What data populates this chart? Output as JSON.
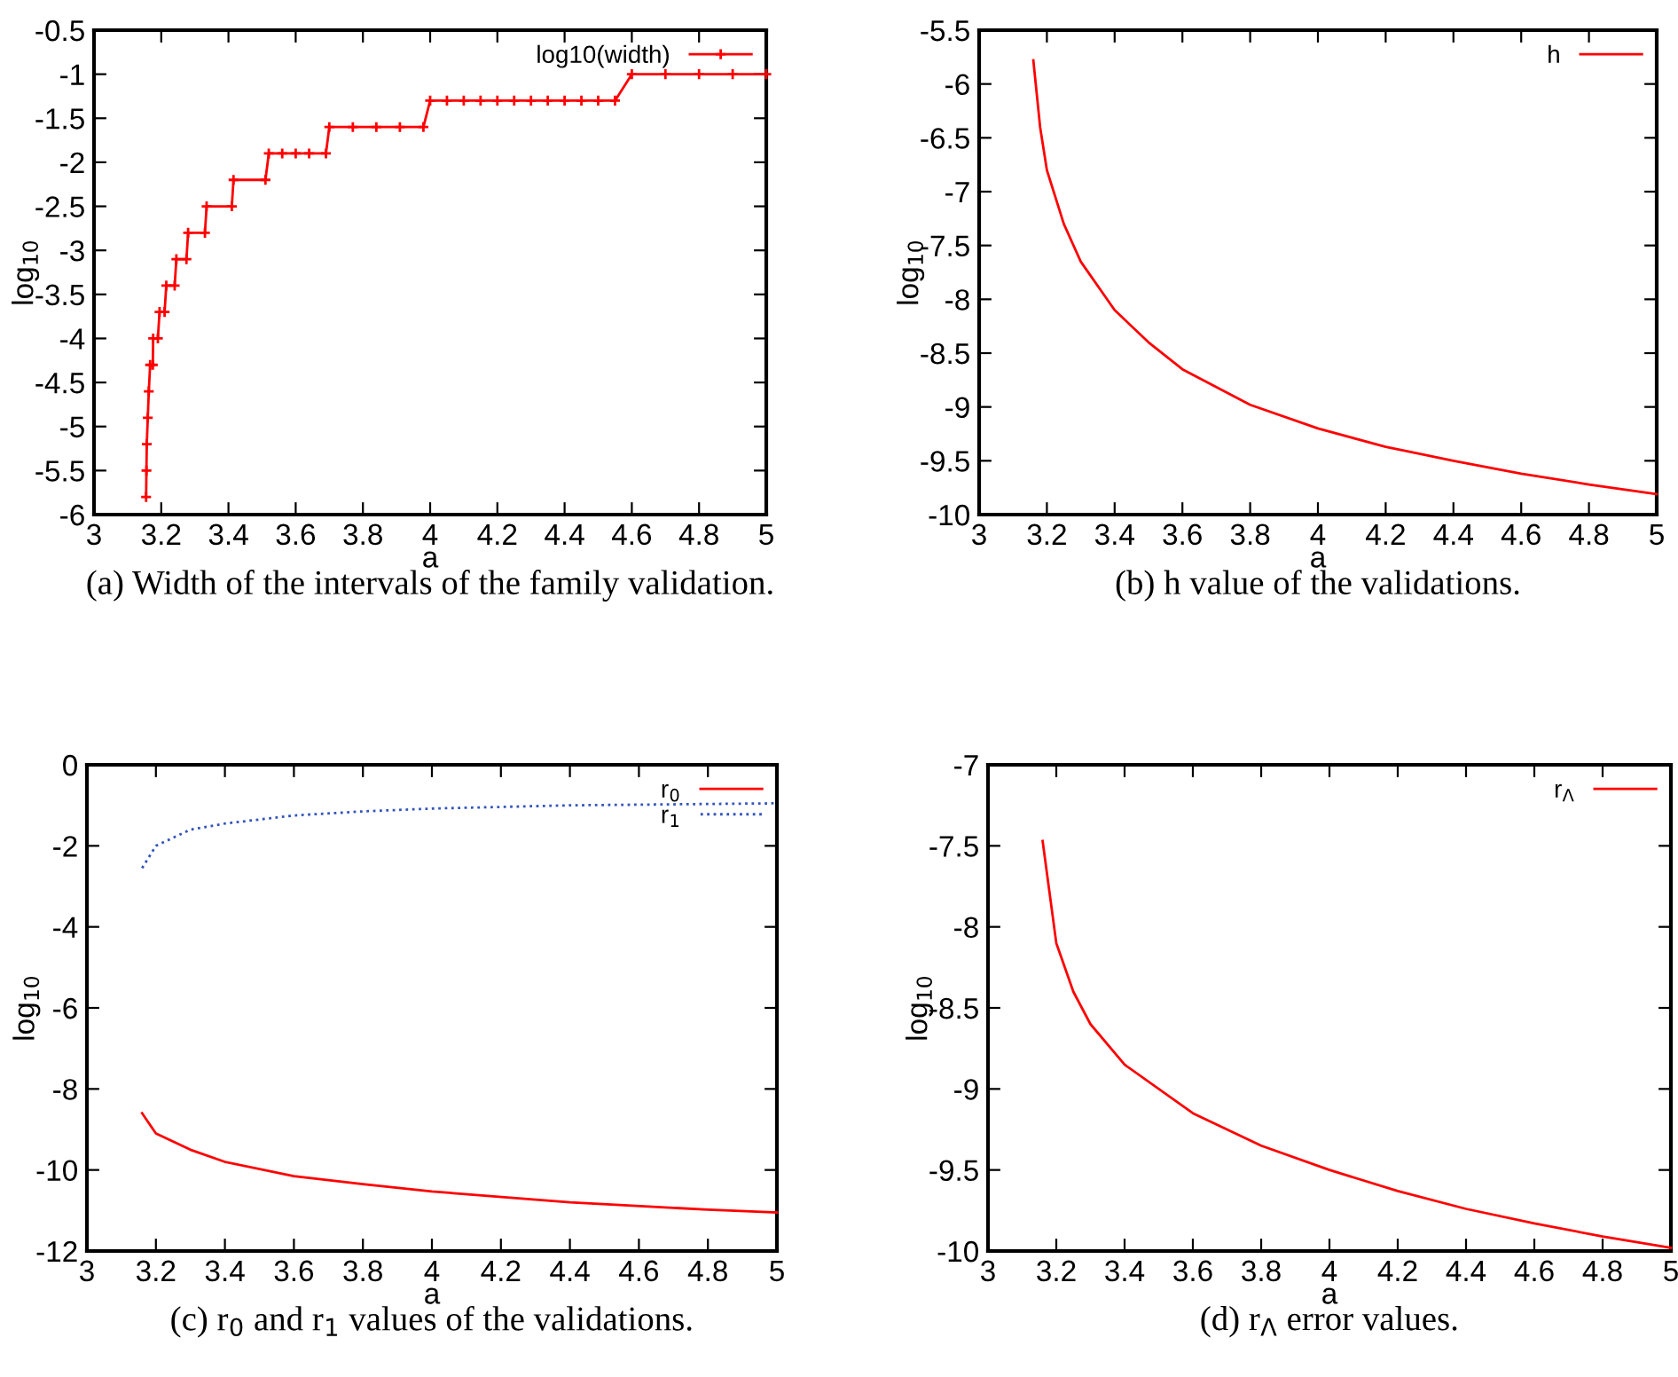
{
  "chart_data": [
    {
      "type": "line",
      "xlabel": "a",
      "ylabel": "log$_{10}$",
      "xlim": [
        3,
        5
      ],
      "xticks": [
        3,
        3.2,
        3.4,
        3.6,
        3.8,
        4,
        4.2,
        4.4,
        4.6,
        4.8,
        5
      ],
      "ylim": [
        -6,
        -0.5
      ],
      "yticks": [
        -6,
        -5.5,
        -5,
        -4.5,
        -4,
        -3.5,
        -3,
        -2.5,
        -2,
        -1.5,
        -1,
        -0.5
      ],
      "legend": "top right",
      "annotations": [
        "(a) Width of the intervals of the family validation."
      ],
      "series": [
        {
          "name": "log10(width)",
          "color": "#ff0000",
          "marker": "cross",
          "line_style": "solid",
          "x": [
            3.155,
            3.156,
            3.157,
            3.16,
            3.163,
            3.167,
            3.175,
            3.176,
            3.19,
            3.195,
            3.21,
            3.215,
            3.24,
            3.245,
            3.275,
            3.28,
            3.33,
            3.335,
            3.41,
            3.415,
            3.51,
            3.52,
            3.56,
            3.6,
            3.64,
            3.69,
            3.7,
            3.77,
            3.84,
            3.91,
            3.98,
            4.0,
            4.05,
            4.1,
            4.15,
            4.2,
            4.25,
            4.3,
            4.35,
            4.4,
            4.45,
            4.5,
            4.55,
            4.6,
            4.7,
            4.8,
            4.9,
            5.0
          ],
          "values": [
            -5.8,
            -5.5,
            -5.2,
            -4.9,
            -4.6,
            -4.3,
            -4.3,
            -4.0,
            -4.0,
            -3.7,
            -3.7,
            -3.4,
            -3.4,
            -3.1,
            -3.1,
            -2.8,
            -2.8,
            -2.5,
            -2.5,
            -2.2,
            -2.2,
            -1.9,
            -1.9,
            -1.9,
            -1.9,
            -1.9,
            -1.6,
            -1.6,
            -1.6,
            -1.6,
            -1.6,
            -1.3,
            -1.3,
            -1.3,
            -1.3,
            -1.3,
            -1.3,
            -1.3,
            -1.3,
            -1.3,
            -1.3,
            -1.3,
            -1.3,
            -1.0,
            -1.0,
            -1.0,
            -1.0,
            -1.0
          ]
        }
      ]
    },
    {
      "type": "line",
      "xlabel": "a",
      "ylabel": "log$_{10}$",
      "xlim": [
        3,
        5
      ],
      "xticks": [
        3,
        3.2,
        3.4,
        3.6,
        3.8,
        4,
        4.2,
        4.4,
        4.6,
        4.8,
        5
      ],
      "ylim": [
        -10,
        -5.5
      ],
      "yticks": [
        -10,
        -9.5,
        -9,
        -8.5,
        -8,
        -7.5,
        -7,
        -6.5,
        -6,
        -5.5
      ],
      "legend": "top right",
      "annotations": [
        "(b) h value of the validations."
      ],
      "series": [
        {
          "name": "h",
          "color": "#ff0000",
          "line_style": "solid",
          "x": [
            3.16,
            3.18,
            3.2,
            3.25,
            3.3,
            3.4,
            3.5,
            3.6,
            3.8,
            4.0,
            4.2,
            4.4,
            4.6,
            4.8,
            5.0
          ],
          "values": [
            -5.78,
            -6.4,
            -6.8,
            -7.3,
            -7.65,
            -8.1,
            -8.4,
            -8.65,
            -8.98,
            -9.2,
            -9.37,
            -9.5,
            -9.62,
            -9.72,
            -9.81
          ]
        }
      ]
    },
    {
      "type": "line",
      "xlabel": "a",
      "ylabel": "log$_{10}$",
      "xlim": [
        3,
        5
      ],
      "xticks": [
        3,
        3.2,
        3.4,
        3.6,
        3.8,
        4,
        4.2,
        4.4,
        4.6,
        4.8,
        5
      ],
      "ylim": [
        -12,
        0
      ],
      "yticks": [
        -12,
        -10,
        -8,
        -6,
        -4,
        -2,
        0
      ],
      "legend": "top right",
      "annotations": [
        "(c) r$_{0}$ and r$_{1}$ values of the validations."
      ],
      "series": [
        {
          "name": "r$_{0}$",
          "color": "#ff0000",
          "line_style": "solid",
          "x": [
            3.16,
            3.2,
            3.3,
            3.4,
            3.6,
            3.8,
            4.0,
            4.4,
            4.8,
            5.0
          ],
          "values": [
            -8.6,
            -9.1,
            -9.5,
            -9.8,
            -10.15,
            -10.35,
            -10.53,
            -10.8,
            -10.98,
            -11.05
          ]
        },
        {
          "name": "r$_{1}$",
          "color": "#3355bb",
          "line_style": "dotted",
          "x": [
            3.16,
            3.2,
            3.3,
            3.4,
            3.6,
            3.8,
            4.0,
            4.4,
            5.0
          ],
          "values": [
            -2.55,
            -2.0,
            -1.6,
            -1.45,
            -1.25,
            -1.15,
            -1.08,
            -1.0,
            -0.95
          ]
        }
      ]
    },
    {
      "type": "line",
      "xlabel": "a",
      "ylabel": "log$_{10}$",
      "xlim": [
        3,
        5
      ],
      "xticks": [
        3,
        3.2,
        3.4,
        3.6,
        3.8,
        4,
        4.2,
        4.4,
        4.6,
        4.8,
        5
      ],
      "ylim": [
        -10,
        -7
      ],
      "yticks": [
        -10,
        -9.5,
        -9,
        -8.5,
        -8,
        -7.5,
        -7
      ],
      "legend": "top right",
      "annotations": [
        "(d) r$_{Λ}$ error values."
      ],
      "series": [
        {
          "name": "r$_{Λ}$",
          "color": "#ff0000",
          "line_style": "solid",
          "x": [
            3.16,
            3.2,
            3.25,
            3.3,
            3.4,
            3.6,
            3.8,
            4.0,
            4.2,
            4.4,
            4.6,
            4.8,
            5.0
          ],
          "values": [
            -7.47,
            -8.1,
            -8.4,
            -8.6,
            -8.85,
            -9.15,
            -9.35,
            -9.5,
            -9.63,
            -9.74,
            -9.83,
            -9.91,
            -9.98
          ]
        }
      ]
    }
  ]
}
